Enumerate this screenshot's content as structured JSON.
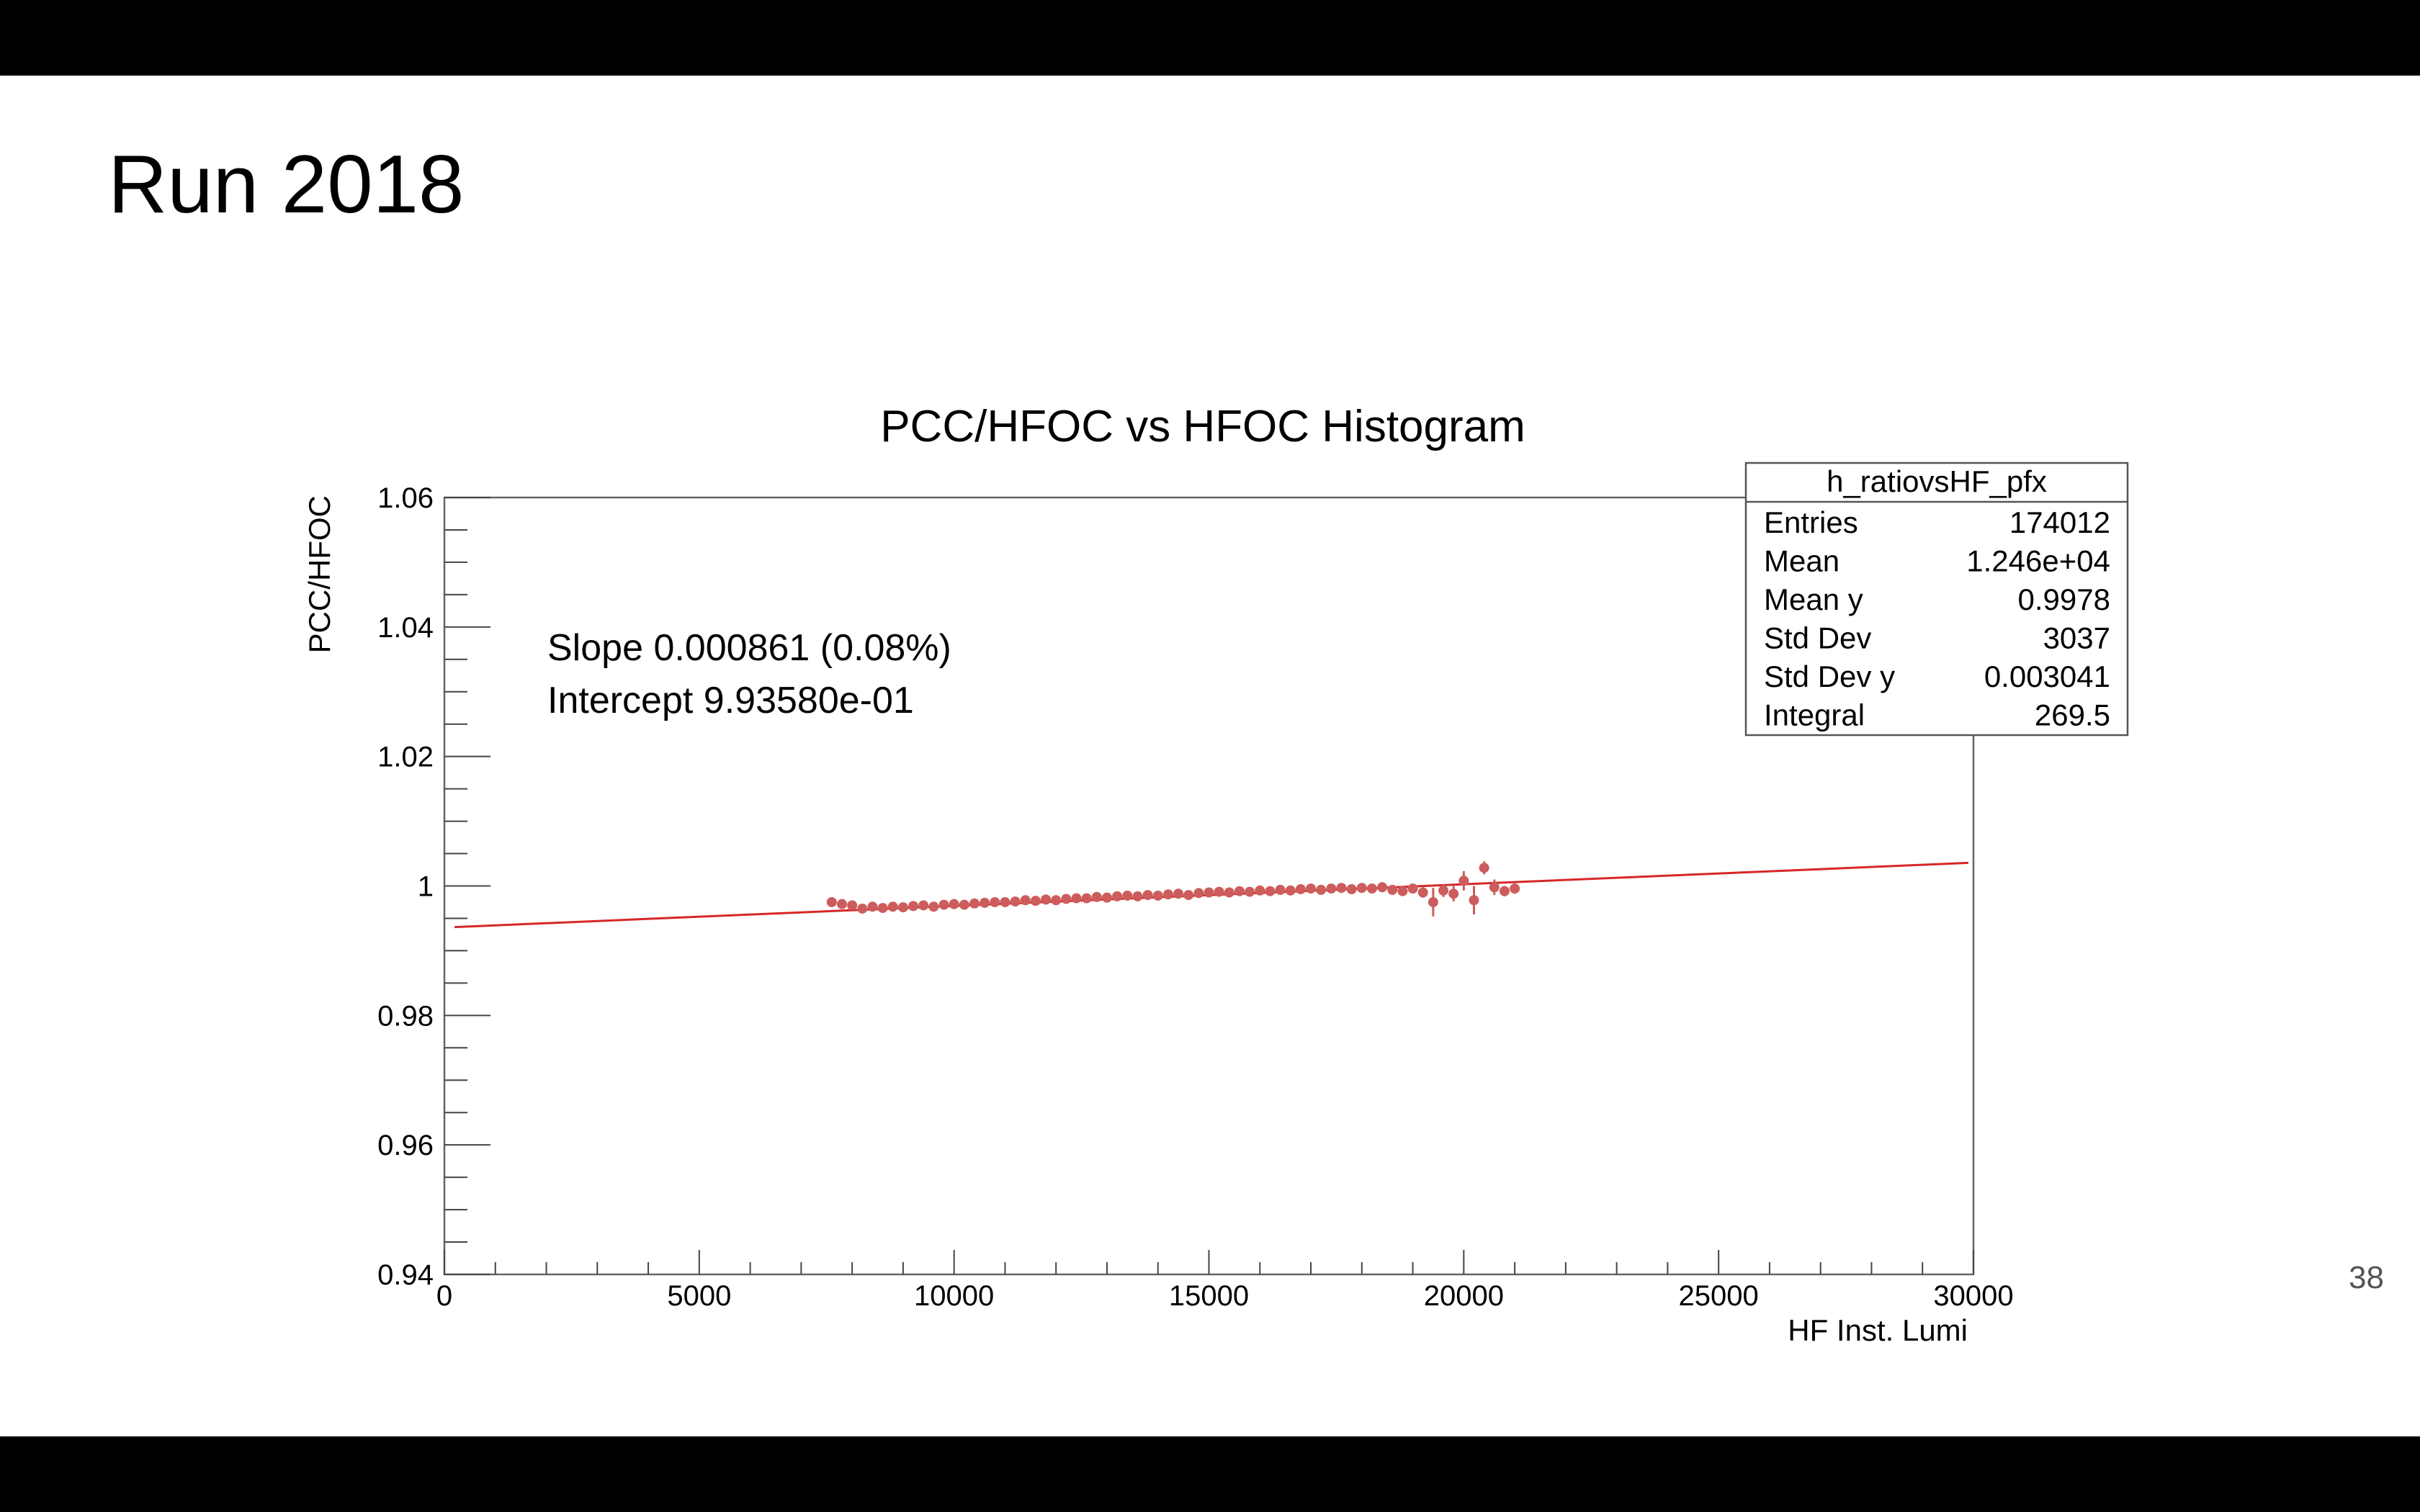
{
  "slide": {
    "title": "Run 2018",
    "page_number": "38"
  },
  "chart_data": {
    "type": "scatter",
    "title": "PCC/HFOC vs HFOC Histogram",
    "xlabel": "HF Inst. Lumi",
    "ylabel": "PCC/HFOC",
    "xlim": [
      0,
      30000
    ],
    "ylim": [
      0.94,
      1.06
    ],
    "x_ticks": [
      0,
      5000,
      10000,
      15000,
      20000,
      25000,
      30000
    ],
    "x_tick_labels": [
      "0",
      "5000",
      "10000",
      "15000",
      "20000",
      "25000",
      "30000"
    ],
    "y_ticks": [
      0.94,
      0.96,
      0.98,
      1.0,
      1.02,
      1.04,
      1.06
    ],
    "y_tick_labels": [
      "0.94",
      "0.96",
      "0.98",
      "1",
      "1.02",
      "1.04",
      "1.06"
    ],
    "grid": false,
    "marker_color": "#cd5c5c",
    "fit_color": "#d62728",
    "series": [
      {
        "x": [
          7600,
          7800,
          8000,
          8200,
          8400,
          8600,
          8800,
          9000,
          9200,
          9400,
          9600,
          9800,
          10000,
          10200,
          10400,
          10600,
          10800,
          11000,
          11200,
          11400,
          11600,
          11800,
          12000,
          12200,
          12400,
          12600,
          12800,
          13000,
          13200,
          13400,
          13600,
          13800,
          14000,
          14200,
          14400,
          14600,
          14800,
          15000,
          15200,
          15400,
          15600,
          15800,
          16000,
          16200,
          16400,
          16600,
          16800,
          17000,
          17200,
          17400,
          17600,
          17800,
          18000,
          18200,
          18400,
          18600,
          18800,
          19000,
          19200,
          19400,
          19600,
          19800,
          20000,
          20200,
          20400,
          20600,
          20800,
          21000
        ],
        "y": [
          0.9975,
          0.9972,
          0.997,
          0.9965,
          0.9968,
          0.9966,
          0.9968,
          0.9967,
          0.9969,
          0.997,
          0.9968,
          0.9971,
          0.9972,
          0.9971,
          0.9973,
          0.9974,
          0.9975,
          0.9975,
          0.9976,
          0.9978,
          0.9977,
          0.9979,
          0.9978,
          0.998,
          0.9981,
          0.9981,
          0.9983,
          0.9982,
          0.9984,
          0.9985,
          0.9984,
          0.9986,
          0.9985,
          0.9987,
          0.9988,
          0.9986,
          0.9989,
          0.999,
          0.9991,
          0.999,
          0.9992,
          0.9991,
          0.9993,
          0.9992,
          0.9994,
          0.9993,
          0.9995,
          0.9996,
          0.9994,
          0.9996,
          0.9997,
          0.9995,
          0.9997,
          0.9996,
          0.9998,
          0.9994,
          0.9992,
          0.9996,
          0.999,
          0.9975,
          0.9993,
          0.9988,
          1.0008,
          0.9978,
          1.0028,
          0.9998,
          0.9992,
          0.9996
        ],
        "err": [
          0.0003,
          0.0003,
          0.0003,
          0.0003,
          0.0003,
          0.0003,
          0.0003,
          0.0003,
          0.0003,
          0.0003,
          0.0003,
          0.0003,
          0.0003,
          0.0003,
          0.0003,
          0.0003,
          0.0003,
          0.0003,
          0.0003,
          0.0003,
          0.0003,
          0.0003,
          0.0003,
          0.0003,
          0.0003,
          0.0003,
          0.0003,
          0.0003,
          0.0003,
          0.0003,
          0.0003,
          0.0003,
          0.0003,
          0.0003,
          0.0003,
          0.0003,
          0.0003,
          0.0003,
          0.0003,
          0.0003,
          0.0003,
          0.0003,
          0.0003,
          0.0003,
          0.0003,
          0.0003,
          0.0003,
          0.0003,
          0.0003,
          0.0003,
          0.0003,
          0.0003,
          0.0003,
          0.0003,
          0.0003,
          0.0005,
          0.0006,
          0.0006,
          0.0008,
          0.0022,
          0.001,
          0.0012,
          0.0015,
          0.0022,
          0.001,
          0.0012,
          0.0008,
          0.0008
        ]
      }
    ],
    "fit": {
      "slope": 3.34e-07,
      "intercept": 0.99358,
      "x_range": [
        200,
        29900
      ]
    },
    "fit_annotation": {
      "line1": "Slope 0.000861  (0.08%)",
      "line2": "Intercept 9.93580e-01"
    },
    "stats_box": {
      "name": "h_ratiovsHF_pfx",
      "rows": [
        {
          "label": "Entries",
          "value": "174012"
        },
        {
          "label": "Mean",
          "value": "1.246e+04"
        },
        {
          "label": "Mean y",
          "value": "0.9978"
        },
        {
          "label": "Std Dev",
          "value": "3037"
        },
        {
          "label": "Std Dev y",
          "value": "0.003041"
        },
        {
          "label": "Integral",
          "value": "269.5"
        }
      ]
    }
  }
}
